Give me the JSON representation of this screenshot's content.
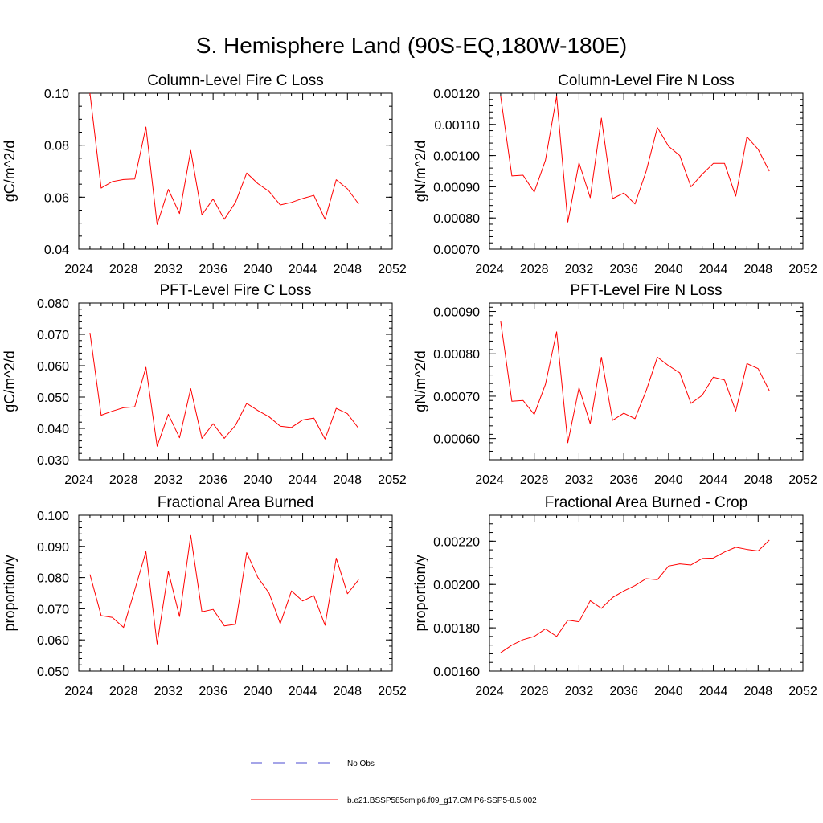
{
  "title": "S. Hemisphere Land (90S-EQ,180W-180E)",
  "legend": {
    "obs_label": "No Obs",
    "obs_color": "#4b4bd2",
    "model_label": "b.e21.BSSP585cmip6.f09_g17.CMIP6-SSP5-8.5.002",
    "model_color": "#ff0000"
  },
  "chart_data": [
    {
      "type": "line",
      "title": "Column-Level Fire C Loss",
      "ylabel": "gC/m^2/d",
      "xlim": [
        2024,
        2052
      ],
      "xticks": [
        "2024",
        "2028",
        "2032",
        "2036",
        "2040",
        "2044",
        "2048",
        "2052"
      ],
      "ylim": [
        0.04,
        0.1
      ],
      "yticks": [
        "0.04",
        "0.06",
        "0.08",
        "0.10"
      ],
      "yminor": 0.005,
      "x": [
        2025,
        2026,
        2027,
        2028,
        2029,
        2030,
        2031,
        2032,
        2033,
        2034,
        2035,
        2036,
        2037,
        2038,
        2039,
        2040,
        2041,
        2042,
        2043,
        2044,
        2045,
        2046,
        2047,
        2048,
        2049
      ],
      "series": [
        {
          "name": "b.e21.BSSP585cmip6.f09_g17.CMIP6-SSP5-8.5.002",
          "values": [
            0.1,
            0.0635,
            0.066,
            0.0668,
            0.067,
            0.087,
            0.0495,
            0.063,
            0.0537,
            0.078,
            0.0532,
            0.0593,
            0.0515,
            0.058,
            0.0693,
            0.0652,
            0.0622,
            0.057,
            0.058,
            0.0595,
            0.0607,
            0.0515,
            0.0667,
            0.0632,
            0.0574
          ]
        }
      ]
    },
    {
      "type": "line",
      "title": "Column-Level Fire N Loss",
      "ylabel": "gN/m^2/d",
      "xlim": [
        2024,
        2052
      ],
      "xticks": [
        "2024",
        "2028",
        "2032",
        "2036",
        "2040",
        "2044",
        "2048",
        "2052"
      ],
      "ylim": [
        0.0007,
        0.0012
      ],
      "yticks": [
        "0.00070",
        "0.00080",
        "0.00090",
        "0.00100",
        "0.00110",
        "0.00120"
      ],
      "yminor": 2e-05,
      "x": [
        2025,
        2026,
        2027,
        2028,
        2029,
        2030,
        2031,
        2032,
        2033,
        2034,
        2035,
        2036,
        2037,
        2038,
        2039,
        2040,
        2041,
        2042,
        2043,
        2044,
        2045,
        2046,
        2047,
        2048,
        2049
      ],
      "series": [
        {
          "name": "b.e21.BSSP585cmip6.f09_g17.CMIP6-SSP5-8.5.002",
          "values": [
            0.00119,
            0.000935,
            0.000937,
            0.000883,
            0.000985,
            0.00119,
            0.000787,
            0.000977,
            0.000865,
            0.00112,
            0.000862,
            0.00088,
            0.000845,
            0.00095,
            0.00109,
            0.00103,
            0.001,
            0.0009,
            0.00094,
            0.000975,
            0.000975,
            0.00087,
            0.00106,
            0.00102,
            0.00095
          ]
        }
      ]
    },
    {
      "type": "line",
      "title": "PFT-Level Fire C Loss",
      "ylabel": "gC/m^2/d",
      "xlim": [
        2024,
        2052
      ],
      "xticks": [
        "2024",
        "2028",
        "2032",
        "2036",
        "2040",
        "2044",
        "2048",
        "2052"
      ],
      "ylim": [
        0.03,
        0.08
      ],
      "yticks": [
        "0.030",
        "0.040",
        "0.050",
        "0.060",
        "0.070",
        "0.080"
      ],
      "yminor": 0.002,
      "x": [
        2025,
        2026,
        2027,
        2028,
        2029,
        2030,
        2031,
        2032,
        2033,
        2034,
        2035,
        2036,
        2037,
        2038,
        2039,
        2040,
        2041,
        2042,
        2043,
        2044,
        2045,
        2046,
        2047,
        2048,
        2049
      ],
      "series": [
        {
          "name": "b.e21.BSSP585cmip6.f09_g17.CMIP6-SSP5-8.5.002",
          "values": [
            0.0705,
            0.0442,
            0.0455,
            0.0466,
            0.0469,
            0.0595,
            0.0343,
            0.0445,
            0.037,
            0.0527,
            0.0368,
            0.0415,
            0.0368,
            0.041,
            0.048,
            0.0457,
            0.0437,
            0.0407,
            0.0403,
            0.0427,
            0.0433,
            0.0366,
            0.0464,
            0.0447,
            0.04
          ]
        }
      ]
    },
    {
      "type": "line",
      "title": "PFT-Level Fire N Loss",
      "ylabel": "gN/m^2/d",
      "xlim": [
        2024,
        2052
      ],
      "xticks": [
        "2024",
        "2028",
        "2032",
        "2036",
        "2040",
        "2044",
        "2048",
        "2052"
      ],
      "ylim": [
        0.00055,
        0.00092
      ],
      "yticks": [
        "0.00060",
        "0.00070",
        "0.00080",
        "0.00090"
      ],
      "yminor": 2e-05,
      "x": [
        2025,
        2026,
        2027,
        2028,
        2029,
        2030,
        2031,
        2032,
        2033,
        2034,
        2035,
        2036,
        2037,
        2038,
        2039,
        2040,
        2041,
        2042,
        2043,
        2044,
        2045,
        2046,
        2047,
        2048,
        2049
      ],
      "series": [
        {
          "name": "b.e21.BSSP585cmip6.f09_g17.CMIP6-SSP5-8.5.002",
          "values": [
            0.000877,
            0.000688,
            0.00069,
            0.000657,
            0.000728,
            0.000852,
            0.00059,
            0.00072,
            0.000635,
            0.000792,
            0.000643,
            0.00066,
            0.000647,
            0.000713,
            0.000792,
            0.000772,
            0.000755,
            0.000683,
            0.000702,
            0.000745,
            0.000738,
            0.000665,
            0.000777,
            0.000765,
            0.000713
          ]
        }
      ]
    },
    {
      "type": "line",
      "title": "Fractional Area Burned",
      "ylabel": "proportion/y",
      "xlim": [
        2024,
        2052
      ],
      "xticks": [
        "2024",
        "2028",
        "2032",
        "2036",
        "2040",
        "2044",
        "2048",
        "2052"
      ],
      "ylim": [
        0.05,
        0.1
      ],
      "yticks": [
        "0.050",
        "0.060",
        "0.070",
        "0.080",
        "0.090",
        "0.100"
      ],
      "yminor": 0.002,
      "x": [
        2025,
        2026,
        2027,
        2028,
        2029,
        2030,
        2031,
        2032,
        2033,
        2034,
        2035,
        2036,
        2037,
        2038,
        2039,
        2040,
        2041,
        2042,
        2043,
        2044,
        2045,
        2046,
        2047,
        2048,
        2049
      ],
      "series": [
        {
          "name": "b.e21.BSSP585cmip6.f09_g17.CMIP6-SSP5-8.5.002",
          "values": [
            0.081,
            0.0678,
            0.0672,
            0.064,
            0.076,
            0.0883,
            0.0587,
            0.082,
            0.0675,
            0.0935,
            0.069,
            0.0698,
            0.0645,
            0.065,
            0.088,
            0.08,
            0.075,
            0.0652,
            0.0757,
            0.0725,
            0.0742,
            0.0647,
            0.0862,
            0.0748,
            0.0793
          ]
        }
      ]
    },
    {
      "type": "line",
      "title": "Fractional Area Burned - Crop",
      "ylabel": "proportion/y",
      "xlim": [
        2024,
        2052
      ],
      "xticks": [
        "2024",
        "2028",
        "2032",
        "2036",
        "2040",
        "2044",
        "2048",
        "2052"
      ],
      "ylim": [
        0.0016,
        0.00232
      ],
      "yticks": [
        "0.00160",
        "0.00180",
        "0.00200",
        "0.00220"
      ],
      "yminor": 4e-05,
      "x": [
        2025,
        2026,
        2027,
        2028,
        2029,
        2030,
        2031,
        2032,
        2033,
        2034,
        2035,
        2036,
        2037,
        2038,
        2039,
        2040,
        2041,
        2042,
        2043,
        2044,
        2045,
        2046,
        2047,
        2048,
        2049
      ],
      "series": [
        {
          "name": "b.e21.BSSP585cmip6.f09_g17.CMIP6-SSP5-8.5.002",
          "values": [
            0.001685,
            0.00172,
            0.001745,
            0.00176,
            0.001795,
            0.00176,
            0.001835,
            0.001828,
            0.001925,
            0.00189,
            0.00194,
            0.00197,
            0.001995,
            0.002027,
            0.002022,
            0.002085,
            0.002095,
            0.00209,
            0.00212,
            0.002122,
            0.00215,
            0.002172,
            0.002162,
            0.002155,
            0.002205
          ]
        }
      ]
    }
  ]
}
